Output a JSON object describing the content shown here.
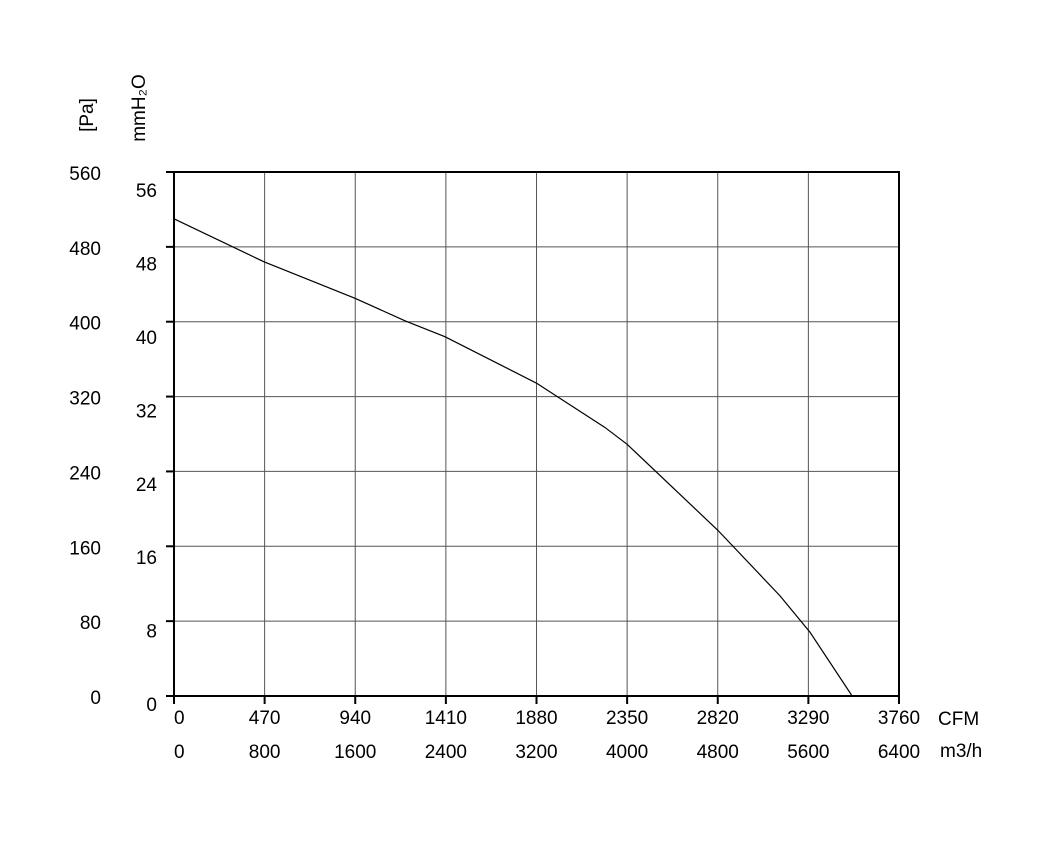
{
  "chart_data": {
    "type": "line",
    "x_label": "CFM",
    "x2_label": "m3/h",
    "y_label": "[Pa]",
    "y2_label": "mmH₂O",
    "x": [
      0,
      467,
      939,
      1198,
      1405,
      1883,
      2235,
      2350,
      2821,
      3143,
      3299,
      3517
    ],
    "series": [
      {
        "color": "#000000",
        "values": [
          510,
          464,
          425,
          401,
          384,
          334,
          287,
          269,
          177,
          107,
          68,
          0
        ]
      }
    ],
    "xlim": [
      0,
      3760
    ],
    "xticks": [
      0,
      470,
      940,
      1410,
      1880,
      2350,
      2820,
      3290,
      3760
    ],
    "x2lim": [
      0,
      6400
    ],
    "x2ticks": [
      0,
      800,
      1600,
      2400,
      3200,
      4000,
      4800,
      5600,
      6400
    ],
    "ylim": [
      0,
      560
    ],
    "yticks": [
      0,
      80,
      160,
      240,
      320,
      400,
      480,
      560
    ],
    "y2lim": [
      0,
      57.1
    ],
    "y2ticks": [
      0,
      8,
      16,
      24,
      32,
      40,
      48,
      56
    ],
    "grid": true
  }
}
